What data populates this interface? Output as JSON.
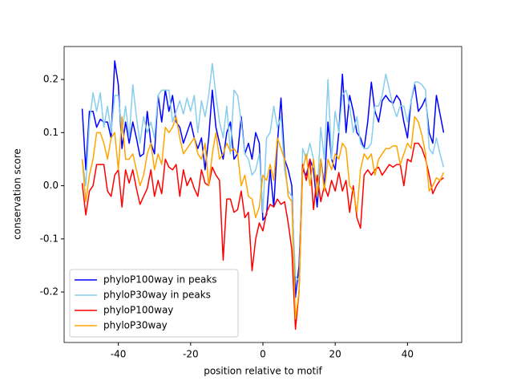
{
  "chart_data": {
    "type": "line",
    "xlabel": "position relative to motif",
    "ylabel": "conservation score",
    "x": [
      -50,
      -49,
      -48,
      -47,
      -46,
      -45,
      -44,
      -43,
      -42,
      -41,
      -40,
      -39,
      -38,
      -37,
      -36,
      -35,
      -34,
      -33,
      -32,
      -31,
      -30,
      -29,
      -28,
      -27,
      -26,
      -25,
      -24,
      -23,
      -22,
      -21,
      -20,
      -19,
      -18,
      -17,
      -16,
      -15,
      -14,
      -13,
      -12,
      -11,
      -10,
      -9,
      -8,
      -7,
      -6,
      -5,
      -4,
      -3,
      -2,
      -1,
      0,
      1,
      2,
      3,
      4,
      5,
      6,
      7,
      8,
      9,
      10,
      11,
      12,
      13,
      14,
      15,
      16,
      17,
      18,
      19,
      20,
      21,
      22,
      23,
      24,
      25,
      26,
      27,
      28,
      29,
      30,
      31,
      32,
      33,
      34,
      35,
      36,
      37,
      38,
      39,
      40,
      41,
      42,
      43,
      44,
      45,
      46,
      47,
      48,
      49,
      50
    ],
    "series": [
      {
        "name": "phyloP100way in peaks",
        "color": "#0000ff",
        "values": [
          0.145,
          0.03,
          0.14,
          0.14,
          0.11,
          0.125,
          0.12,
          0.12,
          0.09,
          0.235,
          0.19,
          0.07,
          0.12,
          0.08,
          0.12,
          0.09,
          0.055,
          0.06,
          0.14,
          0.08,
          0.06,
          0.17,
          0.12,
          0.18,
          0.14,
          0.17,
          0.12,
          0.11,
          0.08,
          0.1,
          0.12,
          0.09,
          0.07,
          0.09,
          0.03,
          0.09,
          0.18,
          0.11,
          0.08,
          0.05,
          0.1,
          0.12,
          0.05,
          0.06,
          0.13,
          0.06,
          0.08,
          0.05,
          0.1,
          0.08,
          -0.065,
          -0.055,
          0.03,
          -0.04,
          0.08,
          0.165,
          0.05,
          0.03,
          0.0,
          -0.21,
          -0.15,
          0.03,
          0.02,
          0.05,
          0.03,
          -0.04,
          0.05,
          0.0,
          0.12,
          0.05,
          0.03,
          0.1,
          0.21,
          0.1,
          0.17,
          0.14,
          0.1,
          0.09,
          0.07,
          0.12,
          0.195,
          0.14,
          0.12,
          0.16,
          0.17,
          0.16,
          0.155,
          0.17,
          0.16,
          0.12,
          0.09,
          0.16,
          0.19,
          0.14,
          0.15,
          0.165,
          0.1,
          0.08,
          0.17,
          0.135,
          0.1
        ]
      },
      {
        "name": "phyloP30way in peaks",
        "color": "#87ceeb",
        "values": [
          0.05,
          0.0,
          0.12,
          0.175,
          0.14,
          0.175,
          0.11,
          0.15,
          0.1,
          0.17,
          0.17,
          0.1,
          0.15,
          0.09,
          0.19,
          0.13,
          0.08,
          0.13,
          0.1,
          0.12,
          0.09,
          0.17,
          0.18,
          0.18,
          0.18,
          0.12,
          0.14,
          0.16,
          0.135,
          0.165,
          0.14,
          0.17,
          0.1,
          0.16,
          0.13,
          0.17,
          0.23,
          0.17,
          0.12,
          0.09,
          0.15,
          0.06,
          0.18,
          0.17,
          0.12,
          0.06,
          0.05,
          0.02,
          0.03,
          0.06,
          -0.05,
          0.09,
          0.1,
          0.15,
          0.11,
          0.13,
          0.03,
          -0.01,
          -0.02,
          -0.17,
          -0.18,
          0.07,
          0.05,
          0.08,
          0.05,
          -0.02,
          0.11,
          0.05,
          0.2,
          0.05,
          0.14,
          0.1,
          0.17,
          0.18,
          0.15,
          0.1,
          0.13,
          0.08,
          0.07,
          0.07,
          0.08,
          0.15,
          0.15,
          0.17,
          0.21,
          0.18,
          0.15,
          0.13,
          0.15,
          0.15,
          0.12,
          0.16,
          0.195,
          0.195,
          0.19,
          0.18,
          0.07,
          0.06,
          0.09,
          0.06,
          0.035
        ]
      },
      {
        "name": "phyloP100way",
        "color": "#ff0000",
        "values": [
          0.005,
          -0.055,
          -0.01,
          0.0,
          0.04,
          0.04,
          0.04,
          -0.01,
          -0.02,
          0.02,
          0.03,
          -0.04,
          0.03,
          0.005,
          0.03,
          -0.005,
          -0.035,
          -0.02,
          -0.005,
          0.03,
          -0.02,
          0.01,
          -0.015,
          0.05,
          0.035,
          0.03,
          0.04,
          -0.02,
          0.03,
          0.0,
          0.015,
          -0.005,
          -0.02,
          0.03,
          0.005,
          0.0,
          0.035,
          0.02,
          0.01,
          -0.14,
          -0.025,
          -0.025,
          -0.05,
          -0.045,
          -0.01,
          -0.06,
          -0.05,
          -0.16,
          -0.1,
          -0.07,
          -0.085,
          -0.05,
          -0.035,
          -0.04,
          -0.025,
          -0.035,
          -0.03,
          -0.07,
          -0.12,
          -0.27,
          -0.2,
          0.04,
          0.01,
          0.05,
          -0.045,
          0.02,
          -0.03,
          0.0,
          -0.02,
          0.01,
          -0.01,
          0.025,
          -0.01,
          0.01,
          -0.05,
          0.0,
          -0.06,
          -0.08,
          0.02,
          0.03,
          0.02,
          0.03,
          0.035,
          0.02,
          0.03,
          0.04,
          0.035,
          0.04,
          0.04,
          0.0,
          0.05,
          0.045,
          0.08,
          0.08,
          0.07,
          0.05,
          0.02,
          -0.015,
          0.0,
          0.01,
          0.015
        ]
      },
      {
        "name": "phyloP30way",
        "color": "#ffa500",
        "values": [
          0.05,
          -0.03,
          0.02,
          0.05,
          0.1,
          0.1,
          0.08,
          0.05,
          0.09,
          0.1,
          0.03,
          0.13,
          0.05,
          0.05,
          0.06,
          0.03,
          0.0,
          0.02,
          0.06,
          0.08,
          0.03,
          0.06,
          0.04,
          0.11,
          0.1,
          0.11,
          0.13,
          0.09,
          0.06,
          0.07,
          0.08,
          0.09,
          0.06,
          0.05,
          0.08,
          0.0,
          0.06,
          0.1,
          0.05,
          0.06,
          0.08,
          0.065,
          0.07,
          0.06,
          0.0,
          0.02,
          -0.02,
          -0.025,
          -0.06,
          -0.04,
          0.02,
          0.01,
          0.04,
          0.01,
          0.09,
          0.07,
          0.05,
          -0.02,
          -0.03,
          -0.25,
          -0.2,
          0.03,
          0.06,
          0.0,
          0.05,
          -0.02,
          0.05,
          -0.01,
          0.05,
          0.03,
          0.06,
          0.05,
          0.08,
          0.07,
          0.0,
          -0.01,
          -0.05,
          0.03,
          0.06,
          0.05,
          0.06,
          0.02,
          0.05,
          0.06,
          0.07,
          0.07,
          0.075,
          0.075,
          0.04,
          0.06,
          0.08,
          0.07,
          0.13,
          0.12,
          0.095,
          0.06,
          -0.01,
          0.0,
          0.015,
          0.01,
          0.025
        ]
      }
    ],
    "xlim": [
      -55,
      55
    ],
    "xticks": [
      -40,
      -20,
      0,
      20,
      40
    ],
    "ylim": [
      -0.295,
      0.262
    ],
    "yticks": [
      -0.2,
      -0.1,
      {
        "value": 0,
        "label": "0.0"
      },
      0.1,
      0.2
    ],
    "grid": false,
    "legend": "lower left"
  }
}
